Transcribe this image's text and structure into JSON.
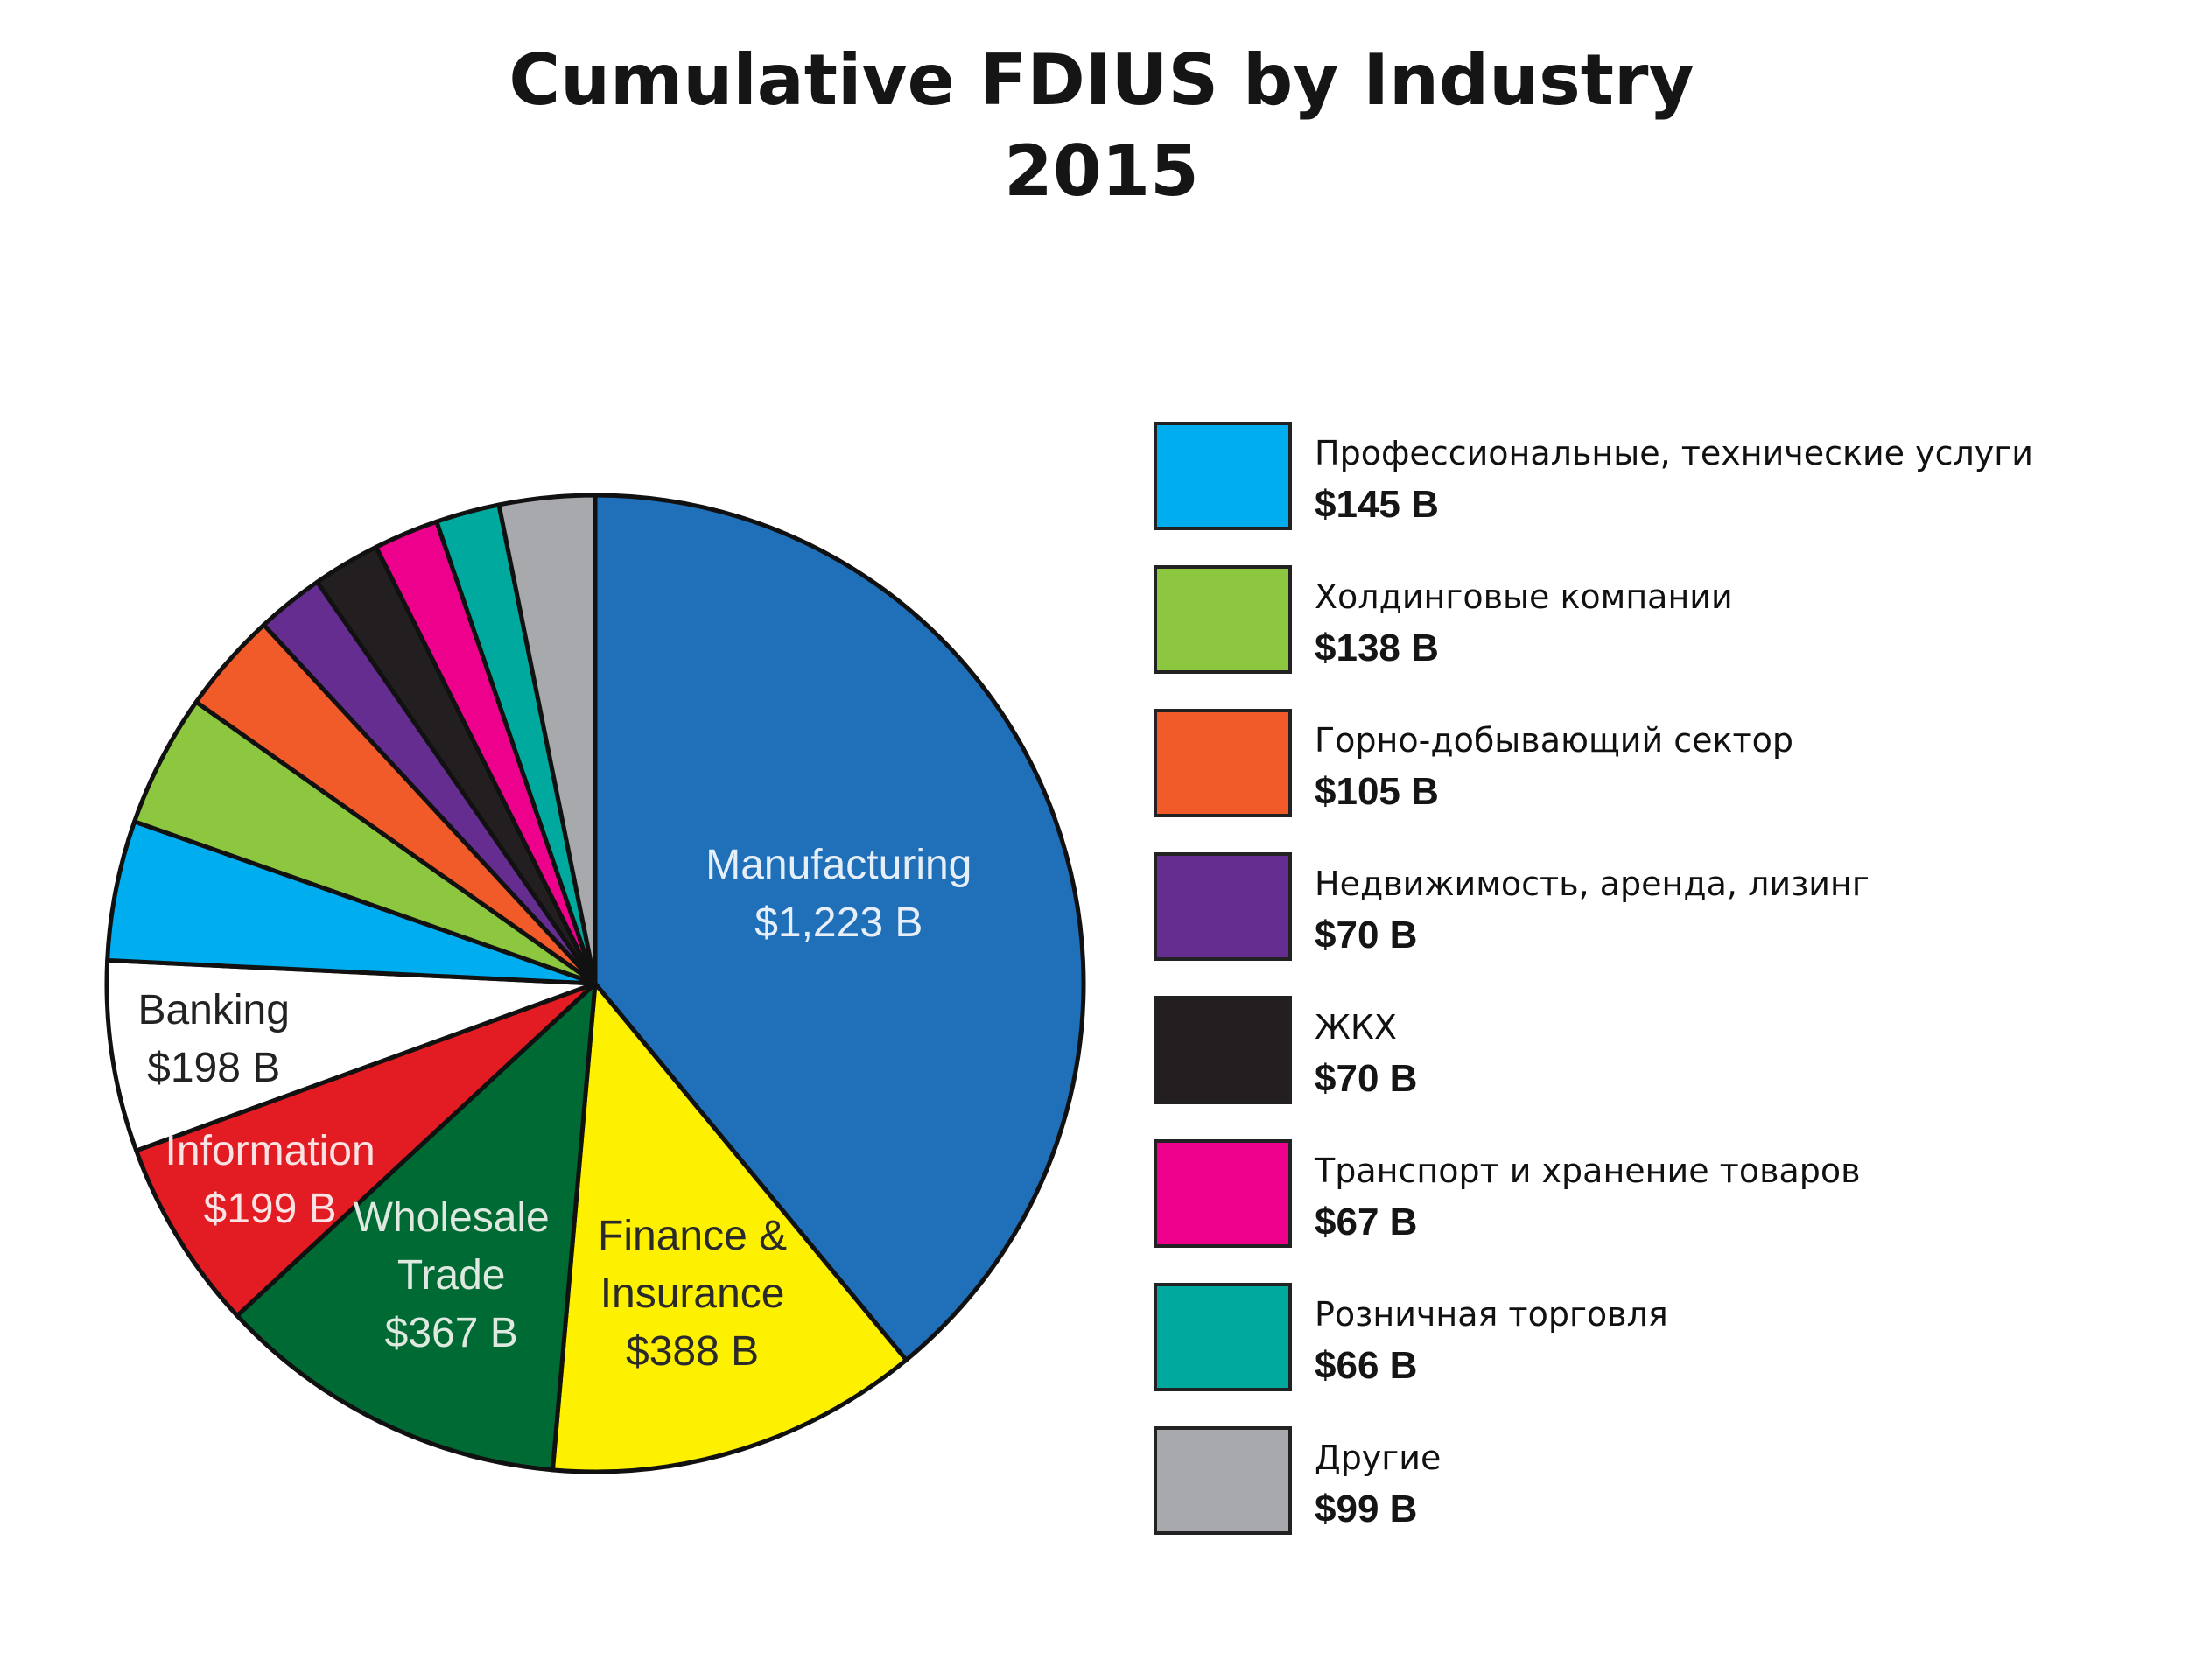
{
  "chart_data": {
    "type": "pie",
    "title": "Cumulative FDIUS by Industry",
    "subtitle": "2015",
    "slices": [
      {
        "label": "Manufacturing",
        "value_label": "$1,223 B",
        "value": 1223,
        "color": "#1f6fb9",
        "text_color": "#e6eef8"
      },
      {
        "label": "Finance & Insurance",
        "label_lines": [
          "Finance &",
          "Insurance"
        ],
        "value_label": "$388 B",
        "value": 388,
        "color": "#fdf100",
        "text_color": "#2a2a2a"
      },
      {
        "label": "Wholesale Trade",
        "label_lines": [
          "Wholesale",
          "Trade"
        ],
        "value_label": "$367 B",
        "value": 367,
        "color": "#006a35",
        "text_color": "#dfe9df"
      },
      {
        "label": "Information",
        "value_label": "$199 B",
        "value": 199,
        "color": "#e31b23",
        "text_color": "#fbe3e3"
      },
      {
        "label": "Banking",
        "value_label": "$198 B",
        "value": 198,
        "color": "#ffffff",
        "text_color": "#222222"
      },
      {
        "label": "Профессиональные, технические услуги",
        "value_label": "$145 B",
        "value": 145,
        "color": "#00aeef"
      },
      {
        "label": "Холдинговые компании",
        "value_label": "$138 B",
        "value": 138,
        "color": "#8dc63f"
      },
      {
        "label": "Горно-добывающий сектор",
        "value_label": "$105 B",
        "value": 105,
        "color": "#f15a29"
      },
      {
        "label": "Недвижимость, аренда, лизинг",
        "value_label": "$70 B",
        "value": 70,
        "color": "#662d91"
      },
      {
        "label": "ЖКХ",
        "value_label": "$70 B",
        "value": 70,
        "color": "#231f20"
      },
      {
        "label": "Транспорт и хранение товаров",
        "value_label": "$67 B",
        "value": 67,
        "color": "#ec008c"
      },
      {
        "label": "Розничная торговля",
        "value_label": "$66 B",
        "value": 66,
        "color": "#00a99d"
      },
      {
        "label": "Другие",
        "value_label": "$99 B",
        "value": 99,
        "color": "#a7a9ac"
      }
    ],
    "legend": [
      {
        "name": "Профессиональные, технические услуги",
        "value": "$145 B",
        "color": "#00aeef"
      },
      {
        "name": "Холдинговые компании",
        "value": "$138 B",
        "color": "#8dc63f"
      },
      {
        "name": "Горно-добывающий сектор",
        "value": "$105 B",
        "color": "#f15a29"
      },
      {
        "name": "Недвижимость, аренда, лизинг",
        "value": "$70 B",
        "color": "#662d91"
      },
      {
        "name": "ЖКХ",
        "value": "$70 B",
        "color": "#231f20"
      },
      {
        "name": "Транспорт и хранение товаров",
        "value": "$67 B",
        "color": "#ec008c"
      },
      {
        "name": "Розничная торговля",
        "value": "$66 B",
        "color": "#00a99d"
      },
      {
        "name": "Другие",
        "value": "$99 B",
        "color": "#a7a9ac"
      }
    ],
    "legend_position": "right"
  }
}
